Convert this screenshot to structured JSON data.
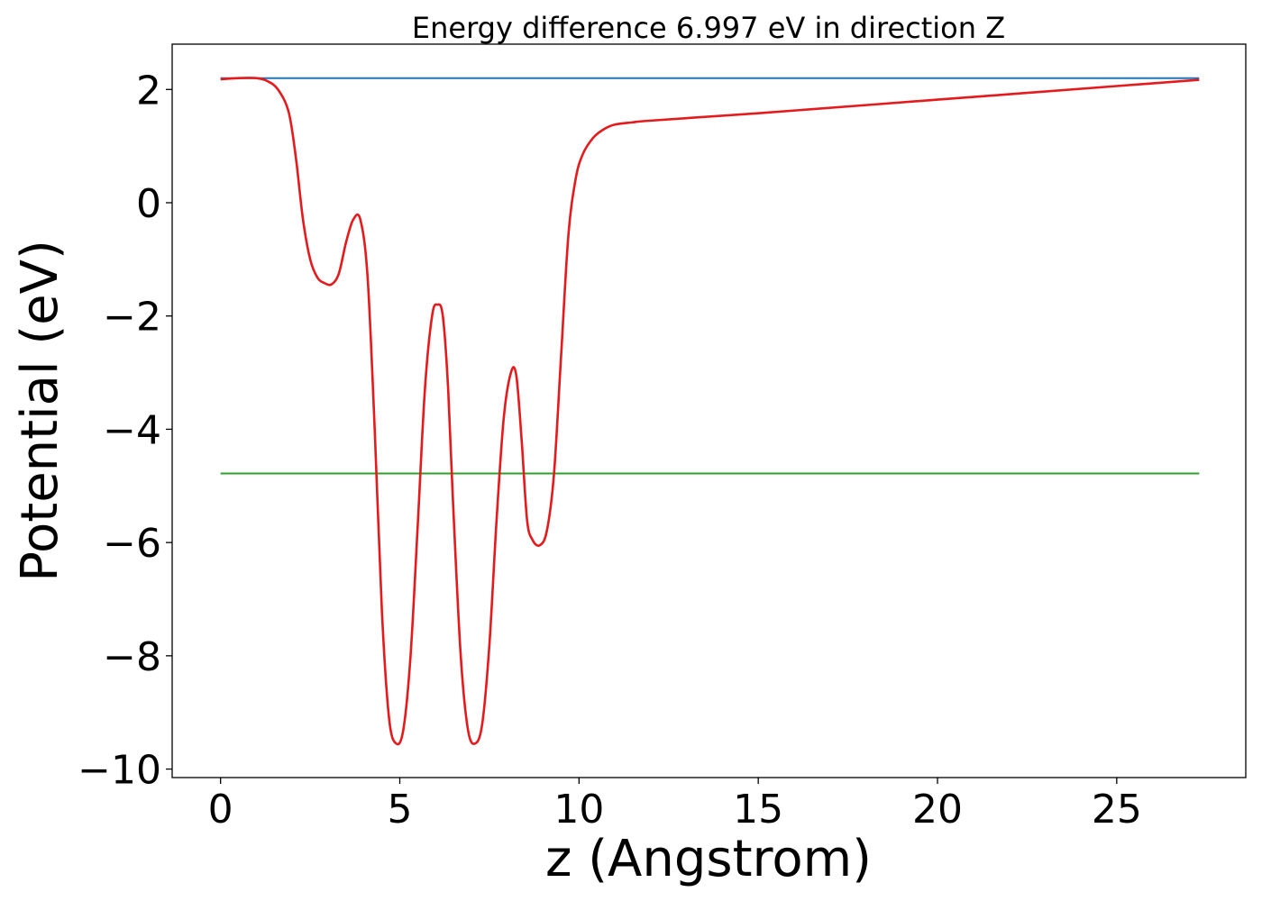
{
  "chart_data": {
    "type": "line",
    "title": "Energy difference 6.997 eV in direction Z",
    "xlabel": "z (Angstrom)",
    "ylabel": "Potential (eV)",
    "xlim": [
      -1.35,
      28.6
    ],
    "ylim": [
      -10.15,
      2.8
    ],
    "xticks": [
      0,
      5,
      10,
      15,
      20,
      25
    ],
    "xtick_labels": [
      "0",
      "5",
      "10",
      "15",
      "20",
      "25"
    ],
    "yticks": [
      2,
      0,
      -2,
      -4,
      -6,
      -8,
      -10
    ],
    "ytick_labels": [
      "2",
      "0",
      "−2",
      "−4",
      "−6",
      "−8",
      "−10"
    ],
    "grid": false,
    "series": [
      {
        "color": "#1f77b4",
        "x": [
          0,
          27.3
        ],
        "y": [
          2.2,
          2.2
        ]
      },
      {
        "color": "#2ca02c",
        "x": [
          0,
          27.3
        ],
        "y": [
          -4.78,
          -4.78
        ]
      },
      {
        "color": "#e41a1c",
        "x": [
          0,
          0.5,
          1.0,
          1.3,
          1.6,
          1.9,
          2.1,
          2.3,
          2.5,
          2.7,
          2.9,
          3.1,
          3.3,
          3.5,
          3.7,
          3.9,
          4.1,
          4.3,
          4.5,
          4.7,
          4.9,
          5.1,
          5.3,
          5.5,
          5.7,
          5.9,
          6.05,
          6.2,
          6.35,
          6.5,
          6.7,
          6.9,
          7.1,
          7.3,
          7.5,
          7.7,
          7.9,
          8.1,
          8.25,
          8.4,
          8.55,
          8.7,
          8.9,
          9.1,
          9.3,
          9.5,
          9.7,
          9.9,
          10.1,
          10.4,
          10.7,
          11.0,
          11.5,
          12.0,
          15.0,
          20.0,
          25.0,
          27.3
        ],
        "y": [
          2.18,
          2.2,
          2.2,
          2.15,
          2.0,
          1.6,
          0.8,
          -0.3,
          -1.0,
          -1.32,
          -1.42,
          -1.44,
          -1.25,
          -0.7,
          -0.3,
          -0.3,
          -1.3,
          -4.0,
          -7.2,
          -9.1,
          -9.55,
          -9.3,
          -8.0,
          -5.7,
          -3.3,
          -2.0,
          -1.8,
          -2.0,
          -3.3,
          -5.5,
          -8.0,
          -9.3,
          -9.55,
          -9.2,
          -7.8,
          -5.6,
          -3.8,
          -3.0,
          -3.05,
          -4.2,
          -5.6,
          -5.95,
          -6.05,
          -5.8,
          -4.8,
          -2.7,
          -0.6,
          0.4,
          0.85,
          1.15,
          1.3,
          1.38,
          1.42,
          1.45,
          1.58,
          1.82,
          2.06,
          2.17
        ]
      }
    ]
  }
}
